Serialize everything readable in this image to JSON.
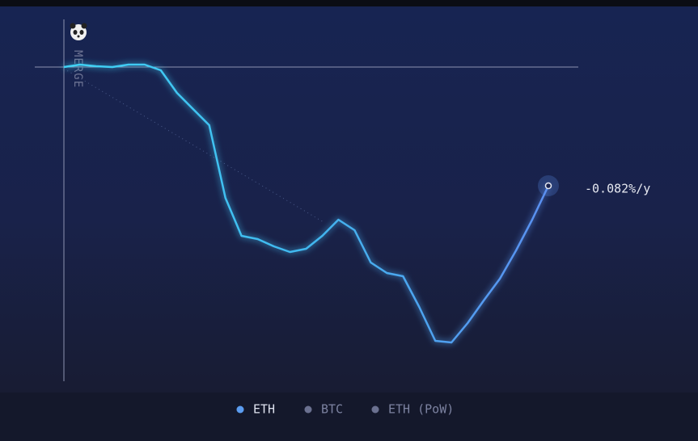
{
  "chart_data": {
    "type": "line",
    "marker_label": "MERGE",
    "end_label": "-0.082%/y",
    "series": [
      {
        "name": "ETH",
        "color": "#3fc3ef",
        "values": [
          0,
          0.3,
          0.1,
          0,
          0.3,
          0.3,
          -0.4,
          -3.2,
          -5.2,
          -7.2,
          -16.2,
          -20.9,
          -21.3,
          -22.2,
          -22.9,
          -22.5,
          -20.9,
          -18.9,
          -20.2,
          -24.2,
          -25.5,
          -25.9,
          -29.7,
          -33.9,
          -34.1,
          -31.7,
          -28.9,
          -26.2,
          -22.7,
          -18.9,
          -14.7
        ]
      }
    ],
    "ylim": [
      -36,
      2
    ],
    "legend": [
      {
        "name": "ETH",
        "color": "#5b9cf0"
      },
      {
        "name": "BTC",
        "color": "#6b7190"
      },
      {
        "name": "ETH (PoW)",
        "color": "#6b7190"
      }
    ]
  }
}
